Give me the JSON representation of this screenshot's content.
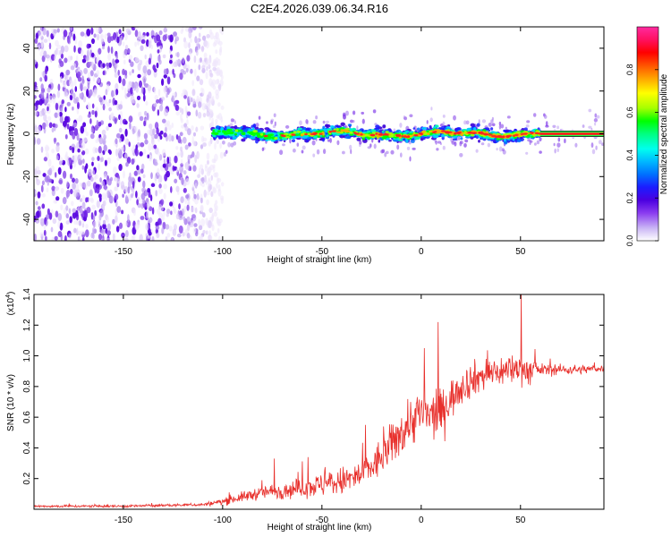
{
  "title": "C2E4.2026.039.06.34.R16",
  "chart_data": [
    {
      "type": "heatmap",
      "name": "spectrogram",
      "xlabel": "Height of straight line (km)",
      "ylabel": "Frequency (Hz)",
      "xlim": [
        -195,
        92
      ],
      "ylim": [
        -50,
        50
      ],
      "xticks": [
        -150,
        -100,
        -50,
        0,
        50
      ],
      "xtick_labels": [
        "-150",
        "-100",
        "-50",
        "0",
        "50"
      ],
      "yticks": [
        -40,
        -20,
        0,
        20,
        40
      ],
      "ytick_labels": [
        "-40",
        "-20",
        "0",
        "20",
        "40"
      ],
      "signal_line_frequency_hz": 0,
      "signal_line_x_range": [
        60,
        92
      ],
      "noise_region_x_range": [
        -195,
        -102
      ],
      "signal_band": {
        "x_start": -105,
        "x_end": 60,
        "halfwidth_hz": 4
      },
      "colorbar": {
        "label": "Normalized spectral amplitude",
        "range": [
          0,
          1
        ],
        "ticks": [
          0.0,
          0.2,
          0.4,
          0.6,
          0.8
        ],
        "tick_labels": [
          "0.0",
          "0.2",
          "0.4",
          "0.6",
          "0.8"
        ],
        "colors": [
          "#ffffff",
          "#c9b4f5",
          "#8a3cf0",
          "#4b00e0",
          "#1c1cff",
          "#0070ff",
          "#00b8ff",
          "#00ffee",
          "#00ff80",
          "#00ff00",
          "#a6ff00",
          "#ffff00",
          "#ffb000",
          "#ff6000",
          "#ff0000",
          "#ff1060",
          "#ff2aa0"
        ]
      }
    },
    {
      "type": "line",
      "name": "snr",
      "xlabel": "Height of straight line (km)",
      "ylabel": "SNR (10 * v/v)",
      "yscale_label": "(x10",
      "yscale_exponent": "4",
      "yscale_close": ")",
      "xlim": [
        -195,
        92
      ],
      "ylim": [
        0,
        1.4
      ],
      "xticks": [
        -150,
        -100,
        -50,
        0,
        50
      ],
      "xtick_labels": [
        "-150",
        "-100",
        "-50",
        "0",
        "50"
      ],
      "yticks": [
        0.2,
        0.4,
        0.6,
        0.8,
        1.0,
        1.2,
        1.4
      ],
      "ytick_labels": [
        "0.2",
        "0.4",
        "0.6",
        "0.8",
        "1.0",
        "1.2",
        "1.4"
      ],
      "color": "#e8302c",
      "trend_x": [
        -195,
        -150,
        -110,
        -100,
        -90,
        -80,
        -70,
        -60,
        -50,
        -40,
        -30,
        -25,
        -20,
        -15,
        -10,
        -5,
        0,
        5,
        10,
        15,
        20,
        25,
        30,
        40,
        50,
        55,
        60,
        70,
        80,
        92
      ],
      "trend_y": [
        0.02,
        0.02,
        0.03,
        0.05,
        0.08,
        0.11,
        0.12,
        0.14,
        0.16,
        0.18,
        0.22,
        0.27,
        0.34,
        0.42,
        0.5,
        0.58,
        0.63,
        0.6,
        0.63,
        0.72,
        0.8,
        0.84,
        0.87,
        0.9,
        0.92,
        0.9,
        0.91,
        0.91,
        0.91,
        0.92
      ],
      "noise_x": [
        -195,
        -110,
        -100,
        -60,
        -40,
        -20,
        0,
        20,
        40,
        55,
        60,
        92
      ],
      "noise_amp": [
        0.01,
        0.012,
        0.03,
        0.08,
        0.12,
        0.16,
        0.22,
        0.15,
        0.13,
        0.12,
        0.05,
        0.03
      ],
      "peaks": [
        {
          "x": 50.5,
          "y": 1.42
        },
        {
          "x": 8.5,
          "y": 1.22
        },
        {
          "x": 1.5,
          "y": 1.05
        },
        {
          "x": -28,
          "y": 0.55
        },
        {
          "x": -57,
          "y": 0.34
        },
        {
          "x": -74,
          "y": 0.33
        }
      ]
    }
  ]
}
